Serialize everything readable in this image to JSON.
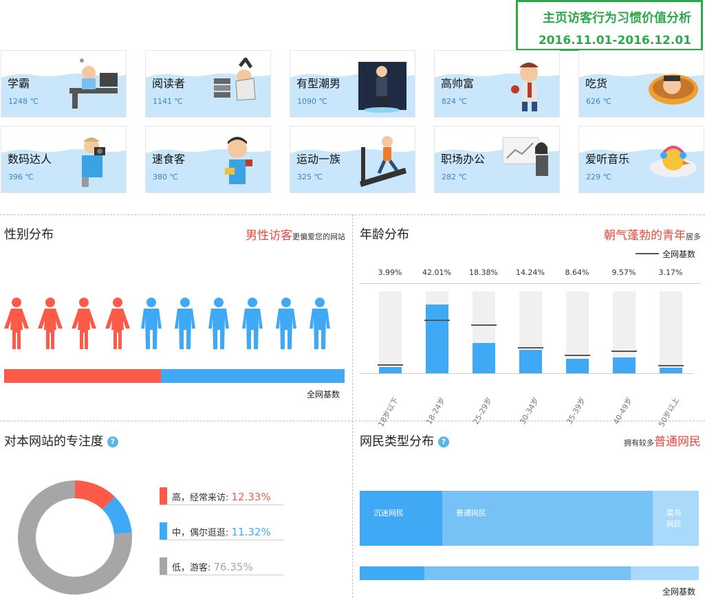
{
  "header": {
    "title": "主页访客行为习惯价值分析",
    "date_range": "2016.11.01-2016.12.01"
  },
  "unit": "℃",
  "cards": [
    {
      "name": "学霸",
      "value": "1248 ℃",
      "icon": "student-desk-icon"
    },
    {
      "name": "阅读者",
      "value": "1141 ℃",
      "icon": "reader-books-icon"
    },
    {
      "name": "有型潮男",
      "value": "1090 ℃",
      "icon": "fashion-man-icon"
    },
    {
      "name": "高帅富",
      "value": "824 ℃",
      "icon": "rich-man-icon"
    },
    {
      "name": "吃货",
      "value": "626 ℃",
      "icon": "foodie-icon"
    },
    {
      "name": "数码达人",
      "value": "396 ℃",
      "icon": "camera-man-icon"
    },
    {
      "name": "速食客",
      "value": "380 ℃",
      "icon": "fast-food-icon"
    },
    {
      "name": "运动一族",
      "value": "325 ℃",
      "icon": "treadmill-icon"
    },
    {
      "name": "职场办公",
      "value": "282 ℃",
      "icon": "office-woman-icon"
    },
    {
      "name": "爱听音乐",
      "value": "229 ℃",
      "icon": "music-chick-icon"
    }
  ],
  "gender": {
    "title": "性别分布",
    "highlight": "男性访客",
    "note": "更偏爱您的网站",
    "female_icons": 4,
    "male_icons": 6,
    "female_share": 0.46,
    "baseline_label": "全网基数",
    "colors": {
      "female": "#fd5a47",
      "male": "#3fa9f5"
    }
  },
  "age": {
    "title": "年龄分布",
    "highlight": "朝气蓬勃的青年",
    "note": "居多",
    "legend": "全网基数"
  },
  "focus": {
    "title": "对本网站的专注度",
    "help": "?",
    "items": [
      {
        "label": "高，经常来访: ",
        "pct": "12.33%",
        "value": 12.33,
        "color": "#fd5a47"
      },
      {
        "label": "中，偶尔逛逛: ",
        "pct": "11.32%",
        "value": 11.32,
        "color": "#3fa9f5"
      },
      {
        "label": "低，游客: ",
        "pct": "76.35%",
        "value": 76.35,
        "color": "#a6a6a6"
      }
    ]
  },
  "netizen": {
    "title": "网民类型分布",
    "help": "?",
    "note": "拥有较多",
    "highlight": "普通网民",
    "baseline_label": "全网基数",
    "segments": [
      {
        "name": "沉迷网民",
        "pct": "24.32%",
        "value": 24.32,
        "color": "#3fa9f5"
      },
      {
        "name": "普通网民",
        "pct": "62.05%",
        "value": 62.05,
        "color": "#76c2f6"
      },
      {
        "name": "菜鸟网民",
        "pct": "13.63%",
        "value": 13.63,
        "color": "#a9d9fb"
      }
    ],
    "baseline": [
      19,
      61,
      20
    ]
  },
  "chart_data": {
    "type": "bar",
    "categories": [
      "18岁以下",
      "18-24岁",
      "25-29岁",
      "30-34岁",
      "35-39岁",
      "40-49岁",
      "50岁以上"
    ],
    "series": [
      {
        "name": "",
        "values": [
          3.99,
          42.01,
          18.38,
          14.24,
          8.64,
          9.57,
          3.17
        ]
      },
      {
        "name": "全网基数",
        "values": [
          4.5,
          32.0,
          29.0,
          15.0,
          10.5,
          13.0,
          4.0
        ]
      }
    ],
    "value_labels": [
      "3.99%",
      "42.01%",
      "18.38%",
      "14.24%",
      "8.64%",
      "9.57%",
      "3.17%"
    ],
    "ylim": [
      0,
      50
    ],
    "colors": {
      "bar": "#3fa9f5",
      "track": "#f0f0f0",
      "baseline": "#555555"
    }
  }
}
